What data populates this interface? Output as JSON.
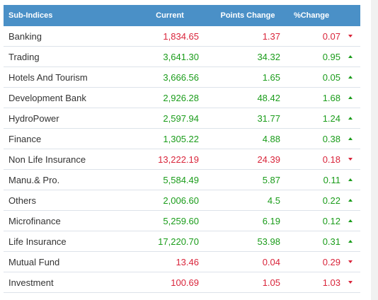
{
  "colors": {
    "header_bg": "#4a90c7",
    "positive": "#1a9c1a",
    "negative": "#d9243a"
  },
  "header": {
    "sub_indices": "Sub-Indices",
    "current": "Current",
    "points_change": "Points Change",
    "pct_change": "%Change"
  },
  "rows": [
    {
      "name": "Banking",
      "current": "1,834.65",
      "points": "1.37",
      "pct": "0.07",
      "dir": "down"
    },
    {
      "name": "Trading",
      "current": "3,641.30",
      "points": "34.32",
      "pct": "0.95",
      "dir": "up"
    },
    {
      "name": "Hotels And Tourism",
      "current": "3,666.56",
      "points": "1.65",
      "pct": "0.05",
      "dir": "up"
    },
    {
      "name": "Development Bank",
      "current": "2,926.28",
      "points": "48.42",
      "pct": "1.68",
      "dir": "up"
    },
    {
      "name": "HydroPower",
      "current": "2,597.94",
      "points": "31.77",
      "pct": "1.24",
      "dir": "up"
    },
    {
      "name": "Finance",
      "current": "1,305.22",
      "points": "4.88",
      "pct": "0.38",
      "dir": "up"
    },
    {
      "name": "Non Life Insurance",
      "current": "13,222.19",
      "points": "24.39",
      "pct": "0.18",
      "dir": "down"
    },
    {
      "name": "Manu.& Pro.",
      "current": "5,584.49",
      "points": "5.87",
      "pct": "0.11",
      "dir": "up"
    },
    {
      "name": "Others",
      "current": "2,006.60",
      "points": "4.5",
      "pct": "0.22",
      "dir": "up"
    },
    {
      "name": "Microfinance",
      "current": "5,259.60",
      "points": "6.19",
      "pct": "0.12",
      "dir": "up"
    },
    {
      "name": "Life Insurance",
      "current": "17,220.70",
      "points": "53.98",
      "pct": "0.31",
      "dir": "up"
    },
    {
      "name": "Mutual Fund",
      "current": "13.46",
      "points": "0.04",
      "pct": "0.29",
      "dir": "down"
    },
    {
      "name": "Investment",
      "current": "100.69",
      "points": "1.05",
      "pct": "1.03",
      "dir": "down"
    }
  ]
}
